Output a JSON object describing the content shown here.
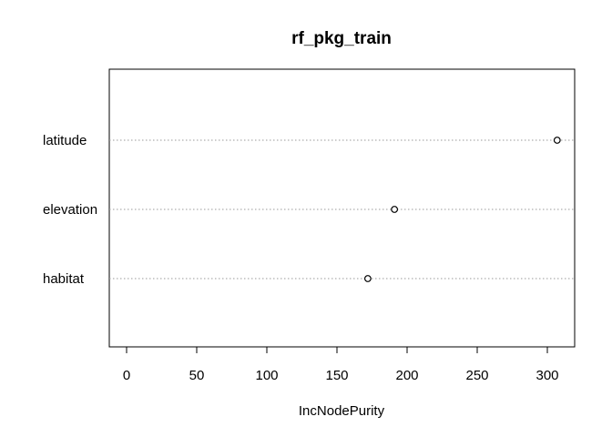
{
  "chart_data": {
    "type": "scatter",
    "subtype": "dotchart",
    "title": "rf_pkg_train",
    "xlabel": "IncNodePurity",
    "ylabel": "",
    "xlim": [
      0,
      320
    ],
    "xticks": [
      0,
      50,
      100,
      150,
      200,
      250,
      300
    ],
    "categories": [
      "latitude",
      "elevation",
      "habitat"
    ],
    "values": [
      307,
      191,
      172
    ],
    "grid": "dotted horizontal guide per category",
    "legend": "none"
  }
}
